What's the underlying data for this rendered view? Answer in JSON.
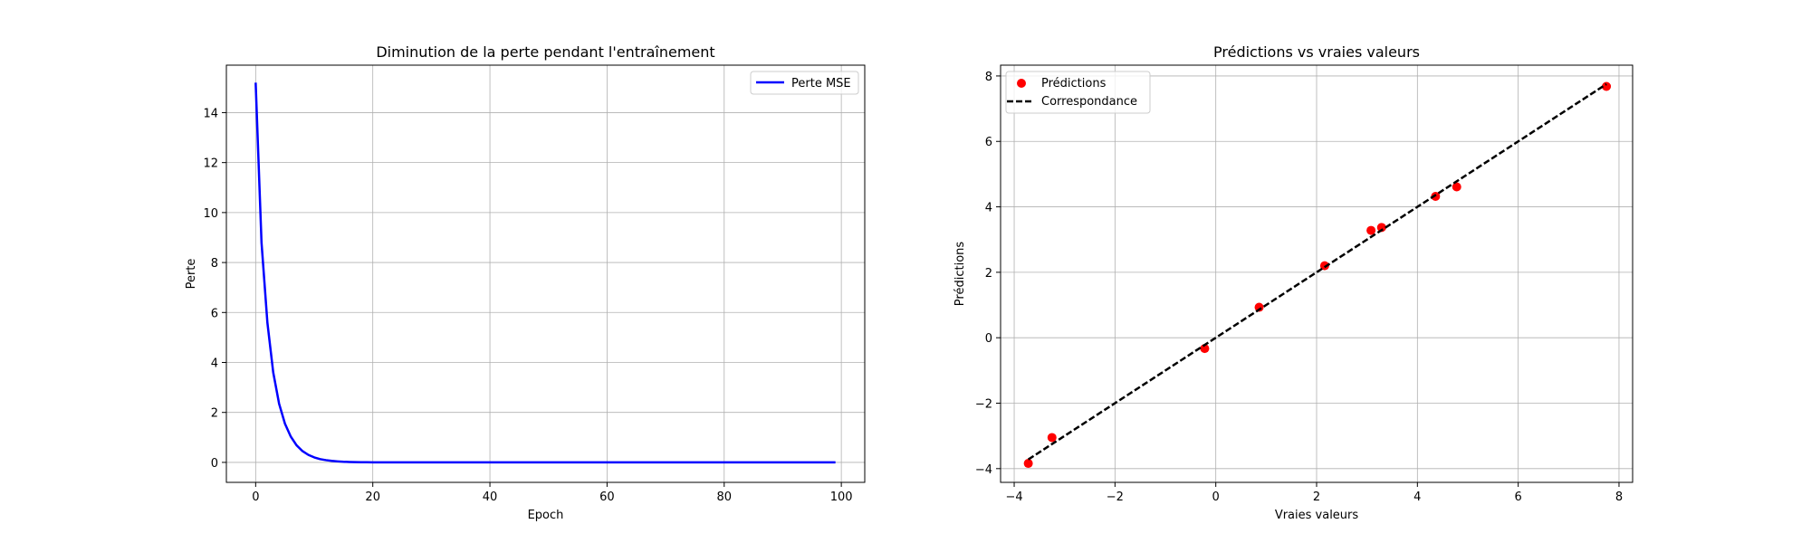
{
  "chart_data": [
    {
      "type": "line",
      "title": "Diminution de la perte pendant l'entraînement",
      "xlabel": "Epoch",
      "ylabel": "Perte",
      "xlim": [
        -5,
        104
      ],
      "ylim": [
        -0.8,
        15.9
      ],
      "xticks": [
        0,
        20,
        40,
        60,
        80,
        100
      ],
      "yticks": [
        0,
        2,
        4,
        6,
        8,
        10,
        12,
        14
      ],
      "grid": true,
      "legend_position": "upper right",
      "series": [
        {
          "name": "Perte MSE",
          "color": "#0000ff",
          "x": [
            0,
            1,
            2,
            3,
            4,
            5,
            6,
            7,
            8,
            9,
            10,
            11,
            12,
            13,
            14,
            15,
            16,
            17,
            18,
            19,
            20,
            21,
            22,
            23,
            24,
            25,
            26,
            27,
            28,
            29,
            30,
            31,
            32,
            33,
            34,
            35,
            36,
            37,
            38,
            39,
            40,
            41,
            42,
            43,
            44,
            45,
            46,
            47,
            48,
            49,
            50,
            51,
            52,
            53,
            54,
            55,
            56,
            57,
            58,
            59,
            60,
            61,
            62,
            63,
            64,
            65,
            66,
            67,
            68,
            69,
            70,
            71,
            72,
            73,
            74,
            75,
            76,
            77,
            78,
            79,
            80,
            81,
            82,
            83,
            84,
            85,
            86,
            87,
            88,
            89,
            90,
            91,
            92,
            93,
            94,
            95,
            96,
            97,
            98,
            99
          ],
          "y": [
            15.2,
            8.8,
            5.6,
            3.6,
            2.35,
            1.55,
            1.03,
            0.68,
            0.45,
            0.3,
            0.2,
            0.13,
            0.09,
            0.06,
            0.04,
            0.025,
            0.017,
            0.011,
            0.007,
            0.005,
            0.003,
            0.002,
            0.001,
            0.001,
            0.001,
            0,
            0,
            0,
            0,
            0,
            0,
            0,
            0,
            0,
            0,
            0,
            0,
            0,
            0,
            0,
            0,
            0,
            0,
            0,
            0,
            0,
            0,
            0,
            0,
            0,
            0,
            0,
            0,
            0,
            0,
            0,
            0,
            0,
            0,
            0,
            0,
            0,
            0,
            0,
            0,
            0,
            0,
            0,
            0,
            0,
            0,
            0,
            0,
            0,
            0,
            0,
            0,
            0,
            0,
            0,
            0,
            0,
            0,
            0,
            0,
            0,
            0,
            0,
            0,
            0,
            0,
            0,
            0,
            0,
            0,
            0,
            0,
            0,
            0,
            0
          ]
        }
      ]
    },
    {
      "type": "scatter",
      "title": "Prédictions vs vraies valeurs",
      "xlabel": "Vraies valeurs",
      "ylabel": "Prédictions",
      "xlim": [
        -4.27,
        8.27
      ],
      "ylim": [
        -4.42,
        8.33
      ],
      "xticks": [
        -4,
        -2,
        0,
        2,
        4,
        6,
        8
      ],
      "yticks": [
        -4,
        -2,
        0,
        2,
        4,
        6,
        8
      ],
      "grid": true,
      "legend_position": "upper left",
      "series": [
        {
          "name": "Prédictions",
          "color": "#ff0000",
          "points": [
            {
              "x": -3.72,
              "y": -3.84
            },
            {
              "x": -3.25,
              "y": -3.05
            },
            {
              "x": -0.22,
              "y": -0.33
            },
            {
              "x": 0.86,
              "y": 0.93
            },
            {
              "x": 2.16,
              "y": 2.2
            },
            {
              "x": 3.08,
              "y": 3.28
            },
            {
              "x": 3.29,
              "y": 3.37
            },
            {
              "x": 4.36,
              "y": 4.32
            },
            {
              "x": 4.78,
              "y": 4.61
            },
            {
              "x": 7.75,
              "y": 7.68
            }
          ]
        },
        {
          "name": "Correspondance",
          "color": "#000000",
          "style": "dashed",
          "x": [
            -3.72,
            7.75
          ],
          "y": [
            -3.72,
            7.75
          ]
        }
      ]
    }
  ]
}
